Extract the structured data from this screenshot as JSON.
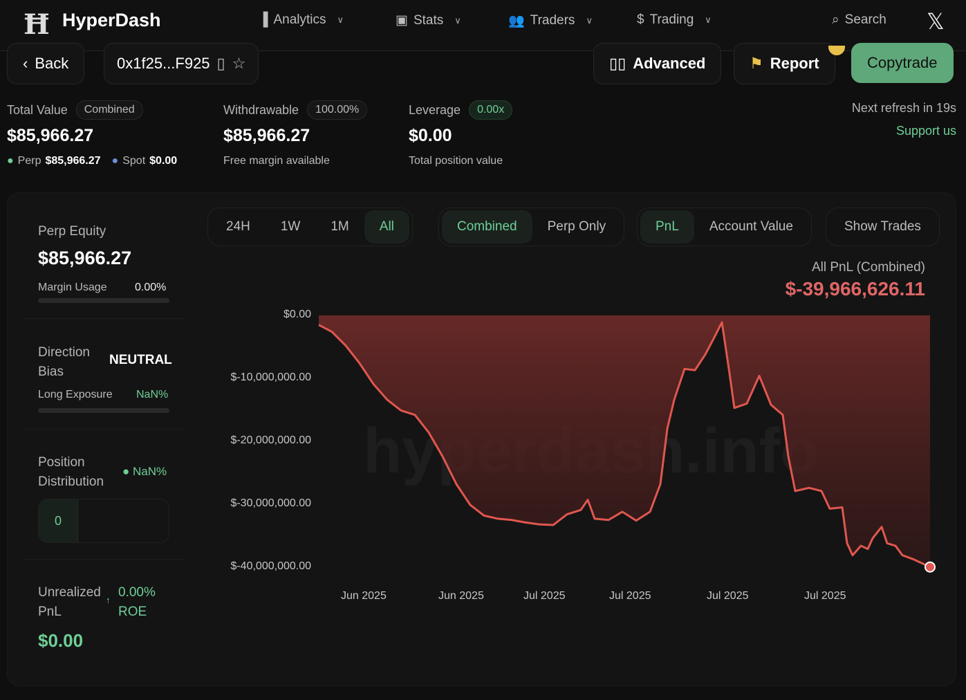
{
  "header": {
    "brand": "HyperDash",
    "nav": [
      {
        "label": "Analytics",
        "icon": "bar-chart-icon"
      },
      {
        "label": "Stats",
        "icon": "terminal-icon"
      },
      {
        "label": "Traders",
        "icon": "users-icon"
      },
      {
        "label": "Trading",
        "icon": "dollar-icon"
      }
    ],
    "search": "Search"
  },
  "toolbar": {
    "back": "Back",
    "address": "0x1f25...F925",
    "advanced": "Advanced",
    "report": "Report",
    "copytrade": "Copytrade"
  },
  "summary": {
    "total_value": {
      "label": "Total Value",
      "badge": "Combined",
      "value": "$85,966.27",
      "perp_label": "Perp",
      "perp": "$85,966.27",
      "spot_label": "Spot",
      "spot": "$0.00"
    },
    "withdrawable": {
      "label": "Withdrawable",
      "badge": "100.00%",
      "value": "$85,966.27",
      "sub": "Free margin available"
    },
    "leverage": {
      "label": "Leverage",
      "badge": "0.00x",
      "value": "$0.00",
      "sub": "Total position value"
    },
    "refresh": "Next refresh in 19s",
    "support": "Support us"
  },
  "side": {
    "perp_equity_label": "Perp Equity",
    "perp_equity": "$85,966.27",
    "margin_usage_label": "Margin Usage",
    "margin_usage": "0.00%",
    "direction_label": "Direction Bias",
    "direction": "NEUTRAL",
    "long_label": "Long Exposure",
    "long": "NaN%",
    "position_label": "Position Distribution",
    "position_pct": "NaN%",
    "position_count": "0",
    "upnl_label": "Unrealized PnL",
    "roe_value": "0.00%",
    "roe_label": "ROE",
    "upnl": "$0.00"
  },
  "controls": {
    "ranges": [
      "24H",
      "1W",
      "1M",
      "All"
    ],
    "range_selected": "All",
    "scope": [
      "Combined",
      "Perp Only"
    ],
    "scope_selected": "Combined",
    "metric": [
      "PnL",
      "Account Value"
    ],
    "metric_selected": "PnL",
    "show_trades": "Show Trades"
  },
  "chart_data": {
    "type": "area",
    "title": "All PnL (Combined)",
    "total": "$-39,966,626.11",
    "yticks": [
      "$0.00",
      "$-10,000,000.00",
      "$-20,000,000.00",
      "$-30,000,000.00",
      "$-40,000,000.00"
    ],
    "ylim": [
      -40000000,
      0
    ],
    "xticks": [
      "Jun 2025",
      "Jun 2025",
      "Jul 2025",
      "Jul 2025",
      "Jul 2025",
      "Jul 2025"
    ],
    "values_millions": [
      -1.5,
      -2.6,
      -4.8,
      -7.6,
      -10.9,
      -13.4,
      -15.1,
      -15.8,
      -18.6,
      -22.4,
      -26.8,
      -30.1,
      -31.8,
      -32.3,
      -32.5,
      -32.9,
      -33.2,
      -33.3,
      -31.6,
      -30.9,
      -29.3,
      -32.3,
      -32.5,
      -31.2,
      -32.6,
      -31.2,
      -26.8,
      -18.0,
      -13.4,
      -8.5,
      -8.7,
      -6.2,
      -3.7,
      -1.1,
      -9.2,
      -14.7,
      -14.0,
      -9.6,
      -14.2,
      -15.8,
      -22.4,
      -27.9,
      -27.4,
      -27.9,
      -30.7,
      -30.5,
      -36.2,
      -38.1,
      -36.6,
      -37.1,
      -35.4,
      -33.6,
      -36.2,
      -36.6,
      -38.1,
      -38.7,
      -39.97
    ],
    "line_color": "#e0574f",
    "fill_color": "#6b2a28",
    "watermark": "hyperdash.info"
  },
  "colors": {
    "accent": "#6fcf97",
    "negative": "#e06666",
    "copytrade": "#5fa87a",
    "report_flag": "#e8c14a"
  }
}
